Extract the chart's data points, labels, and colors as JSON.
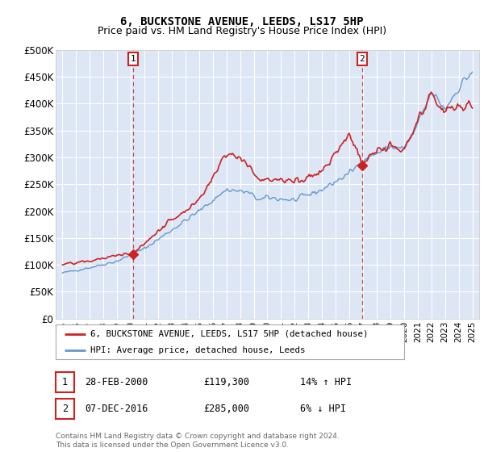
{
  "title": "6, BUCKSTONE AVENUE, LEEDS, LS17 5HP",
  "subtitle": "Price paid vs. HM Land Registry's House Price Index (HPI)",
  "ylim": [
    0,
    500000
  ],
  "yticks": [
    0,
    50000,
    100000,
    150000,
    200000,
    250000,
    300000,
    350000,
    400000,
    450000,
    500000
  ],
  "ytick_labels": [
    "£0",
    "£50K",
    "£100K",
    "£150K",
    "£200K",
    "£250K",
    "£300K",
    "£350K",
    "£400K",
    "£450K",
    "£500K"
  ],
  "plot_bg_color": "#dce6f5",
  "grid_color": "#ffffff",
  "sale1_date_num": 2000.16,
  "sale1_price": 119300,
  "sale1_text": "28-FEB-2000",
  "sale1_price_text": "£119,300",
  "sale1_hpi_text": "14% ↑ HPI",
  "sale2_date_num": 2016.93,
  "sale2_price": 285000,
  "sale2_text": "07-DEC-2016",
  "sale2_price_text": "£285,000",
  "sale2_hpi_text": "6% ↓ HPI",
  "legend_line1": "6, BUCKSTONE AVENUE, LEEDS, LS17 5HP (detached house)",
  "legend_line2": "HPI: Average price, detached house, Leeds",
  "footer": "Contains HM Land Registry data © Crown copyright and database right 2024.\nThis data is licensed under the Open Government Licence v3.0.",
  "hpi_color": "#6699cc",
  "price_color": "#cc2222",
  "marker_box_color": "#cc2222",
  "vline_color": "#cc3333",
  "title_fontsize": 10,
  "subtitle_fontsize": 9,
  "tick_fontsize": 8.5
}
